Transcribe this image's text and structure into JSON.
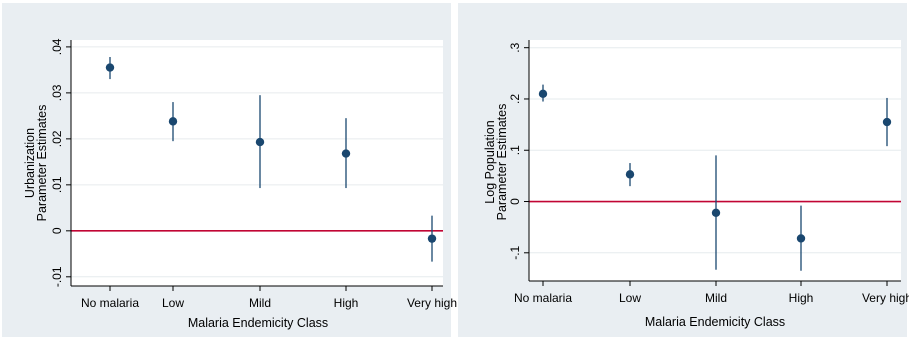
{
  "chart_data": [
    {
      "type": "scatter",
      "subtype": "point-estimate-with-confidence-interval",
      "title": "",
      "ylabel_lines": [
        "Urbanization",
        "Parameter Estimates"
      ],
      "xlabel": "Malaria Endemicity Class",
      "categories": [
        "No malaria",
        "Low",
        "Mild",
        "High",
        "Very high"
      ],
      "series": [
        {
          "points": [
            {
              "x": "No malaria",
              "y": 0.0355,
              "lo": 0.033,
              "hi": 0.0378
            },
            {
              "x": "Low",
              "y": 0.0238,
              "lo": 0.0195,
              "hi": 0.028
            },
            {
              "x": "Mild",
              "y": 0.0193,
              "lo": 0.0093,
              "hi": 0.0295
            },
            {
              "x": "High",
              "y": 0.0168,
              "lo": 0.0093,
              "hi": 0.0245
            },
            {
              "x": "Very high",
              "y": -0.0017,
              "lo": -0.0067,
              "hi": 0.0033
            }
          ]
        }
      ],
      "ylim": [
        -0.012,
        0.0415
      ],
      "y_ticks": [
        -0.01,
        0,
        0.01,
        0.02,
        0.03,
        0.04
      ],
      "y_tick_labels": [
        "-.01",
        "0",
        ".01",
        ".02",
        ".03",
        ".04"
      ],
      "reference_line_y": 0,
      "grid": true
    },
    {
      "type": "scatter",
      "subtype": "point-estimate-with-confidence-interval",
      "title": "",
      "ylabel_lines": [
        "Log Population",
        "Parameter Estimates"
      ],
      "xlabel": "Malaria Endemicity Class",
      "categories": [
        "No malaria",
        "Low",
        "Mild",
        "High",
        "Very high"
      ],
      "series": [
        {
          "points": [
            {
              "x": "No malaria",
              "y": 0.21,
              "lo": 0.195,
              "hi": 0.228
            },
            {
              "x": "Low",
              "y": 0.053,
              "lo": 0.03,
              "hi": 0.075
            },
            {
              "x": "Mild",
              "y": -0.022,
              "lo": -0.133,
              "hi": 0.09
            },
            {
              "x": "High",
              "y": -0.072,
              "lo": -0.135,
              "hi": -0.008
            },
            {
              "x": "Very high",
              "y": 0.155,
              "lo": 0.108,
              "hi": 0.202
            }
          ]
        }
      ],
      "ylim": [
        -0.155,
        0.315
      ],
      "y_ticks": [
        -0.1,
        0,
        0.1,
        0.2,
        0.3
      ],
      "y_tick_labels": [
        "-.1",
        "0",
        ".1",
        ".2",
        ".3"
      ],
      "reference_line_y": 0,
      "grid": true
    }
  ],
  "colors": {
    "outer_background": "#e9eef2",
    "plot_background": "#ffffff",
    "grid": "#e6ebee",
    "marker": "#1a476f",
    "reference_line": "#c10534",
    "axis": "#000000",
    "text": "#000000"
  }
}
